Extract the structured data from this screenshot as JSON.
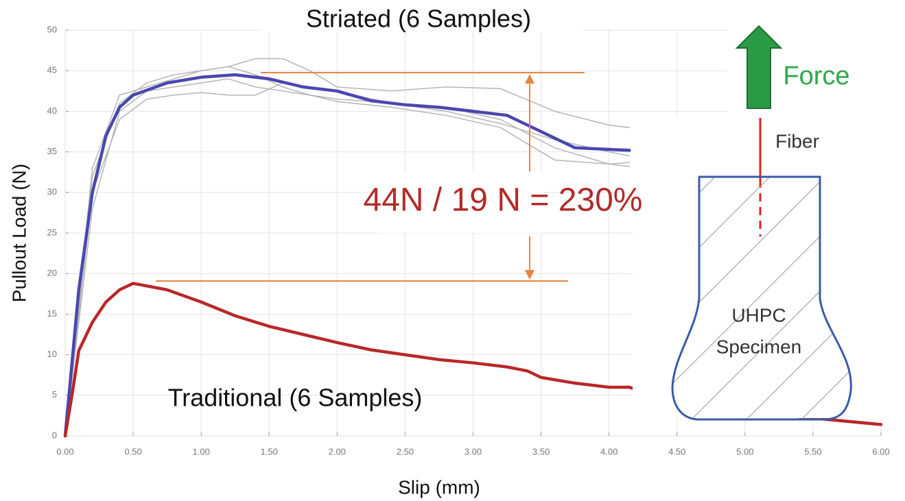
{
  "chart_data": {
    "type": "line",
    "x_label": "Slip (mm)",
    "y_label": "Pullout Load (N)",
    "xlim": [
      0,
      6
    ],
    "ylim": [
      0,
      50
    ],
    "xticks": [
      {
        "value": 0,
        "label": "0.00"
      },
      {
        "value": 0.5,
        "label": "0.50"
      },
      {
        "value": 1,
        "label": "1.00"
      },
      {
        "value": 1.5,
        "label": "1.50"
      },
      {
        "value": 2,
        "label": "2.00"
      },
      {
        "value": 2.5,
        "label": "2.50"
      },
      {
        "value": 3,
        "label": "3.00"
      },
      {
        "value": 3.5,
        "label": "3.50"
      },
      {
        "value": 4,
        "label": "4.00"
      },
      {
        "value": 4.5,
        "label": "4.50"
      },
      {
        "value": 5,
        "label": "5.00"
      },
      {
        "value": 5.5,
        "label": "5.50"
      },
      {
        "value": 6,
        "label": "6.00"
      }
    ],
    "yticks": [
      0,
      5,
      10,
      15,
      20,
      25,
      30,
      35,
      40,
      45,
      50
    ],
    "grid": true,
    "series": [
      {
        "color": "#b5b5b5",
        "x": [
          0,
          0.2,
          0.4,
          0.6,
          0.8,
          1.0,
          1.2,
          1.4,
          1.6,
          1.8,
          2.0,
          2.4,
          2.8,
          3.2,
          3.6,
          4.0,
          4.15
        ],
        "values": [
          0,
          32,
          41,
          43.5,
          44.5,
          45,
          45.5,
          46.5,
          46.5,
          45,
          43,
          42.5,
          43,
          42.8,
          40,
          38.3,
          38
        ]
      },
      {
        "color": "#b5b5b5",
        "x": [
          0,
          0.2,
          0.4,
          0.6,
          0.8,
          1.0,
          1.2,
          1.4,
          1.6,
          1.8,
          2.0,
          2.4,
          2.8,
          3.2,
          3.6,
          4.0,
          4.15
        ],
        "values": [
          0,
          28,
          40,
          42.5,
          43,
          43.5,
          44,
          43,
          42.5,
          42,
          41.5,
          41,
          40.5,
          39,
          35.5,
          33.5,
          33.2
        ]
      },
      {
        "color": "#b5b5b5",
        "x": [
          0,
          0.2,
          0.4,
          0.6,
          0.8,
          1.0,
          1.2,
          1.4,
          1.6,
          1.8,
          2.0,
          2.4,
          2.8,
          3.2,
          3.6,
          4.0,
          4.15
        ],
        "values": [
          0,
          30,
          39,
          41.5,
          42,
          42.3,
          42,
          42,
          43.5,
          43,
          42.5,
          41,
          40,
          38.5,
          36.5,
          35,
          34.5
        ]
      },
      {
        "color": "#b5b5b5",
        "x": [
          0,
          0.2,
          0.4,
          0.6,
          0.8,
          1.0,
          1.2,
          1.4,
          1.6,
          1.8,
          2.0,
          2.4,
          2.8,
          3.2,
          3.6,
          4.0,
          4.15
        ],
        "values": [
          0,
          33,
          42,
          43,
          44,
          45,
          45.5,
          44.5,
          43,
          42,
          41.2,
          40.5,
          39.5,
          38,
          34,
          33.5,
          33.7
        ]
      },
      {
        "color": "#4a47b0",
        "x": [
          0,
          0.1,
          0.2,
          0.3,
          0.4,
          0.5,
          0.75,
          1.0,
          1.25,
          1.5,
          1.75,
          2.0,
          2.25,
          2.5,
          2.75,
          3.0,
          3.25,
          3.5,
          3.75,
          4.0,
          4.15
        ],
        "values": [
          0,
          18,
          30,
          37,
          40.5,
          42,
          43.5,
          44.2,
          44.5,
          44,
          43,
          42.5,
          41.3,
          40.8,
          40.5,
          40,
          39.5,
          37.5,
          35.5,
          35.3,
          35.2
        ]
      },
      {
        "color": "#b8282a",
        "x": [
          0,
          0.05,
          0.1,
          0.2,
          0.3,
          0.4,
          0.5,
          0.75,
          1.0,
          1.25,
          1.5,
          1.75,
          2.0,
          2.25,
          2.5,
          2.75,
          3.0,
          3.25,
          3.4,
          3.5,
          3.75,
          4.0,
          4.15,
          4.5,
          5.0,
          5.5,
          6.0
        ],
        "values": [
          0,
          5,
          10.5,
          14,
          16.5,
          18,
          18.8,
          18,
          16.5,
          14.8,
          13.5,
          12.5,
          11.5,
          10.6,
          10,
          9.4,
          9,
          8.5,
          8,
          7.2,
          6.5,
          6.0,
          6.0,
          4,
          3,
          2.2,
          1.4
        ]
      }
    ],
    "annotations": [
      "Striated (6 Samples)",
      "Traditional (6 Samples)",
      "44N / 19 N = 230%",
      "Force",
      "Fiber",
      "UHPC",
      "Specimen"
    ]
  }
}
